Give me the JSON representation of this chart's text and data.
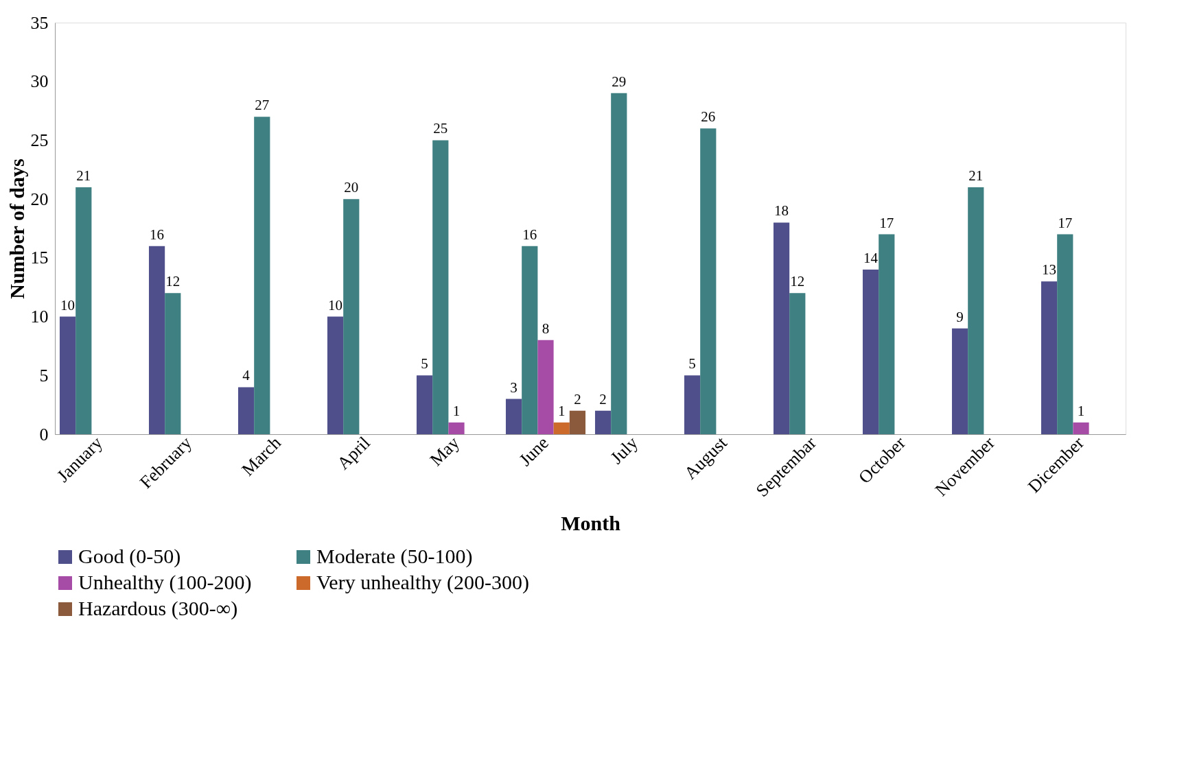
{
  "chart_data": {
    "type": "bar",
    "xlabel": "Month",
    "ylabel": "Number of days",
    "categories": [
      "January",
      "February",
      "March",
      "April",
      "May",
      "June",
      "July",
      "August",
      "Septembar",
      "October",
      "November",
      "Dicember"
    ],
    "series": [
      {
        "name": "Good (0-50)",
        "color": "#4f4f8b",
        "values": [
          10,
          16,
          4,
          10,
          5,
          3,
          2,
          5,
          18,
          14,
          9,
          13
        ]
      },
      {
        "name": "Moderate (50-100)",
        "color": "#3f8082",
        "values": [
          21,
          12,
          27,
          20,
          25,
          16,
          29,
          26,
          12,
          17,
          21,
          17
        ]
      },
      {
        "name": "Unhealthy (100-200)",
        "color": "#a64ca6",
        "values": [
          null,
          null,
          null,
          null,
          1,
          8,
          null,
          null,
          null,
          null,
          null,
          1
        ]
      },
      {
        "name": "Very unhealthy (200-300)",
        "color": "#cc6a2c",
        "values": [
          null,
          null,
          null,
          null,
          null,
          1,
          null,
          null,
          null,
          null,
          null,
          null
        ]
      },
      {
        "name": "Hazardous (300-∞)",
        "color": "#8b5a3c",
        "values": [
          null,
          null,
          null,
          null,
          null,
          2,
          null,
          null,
          null,
          null,
          null,
          null
        ]
      }
    ],
    "ylim": [
      0,
      35
    ],
    "yticks": [
      0,
      5,
      10,
      15,
      20,
      25,
      30,
      35
    ],
    "data_labels": true,
    "grid": false,
    "legend": "bottom"
  }
}
